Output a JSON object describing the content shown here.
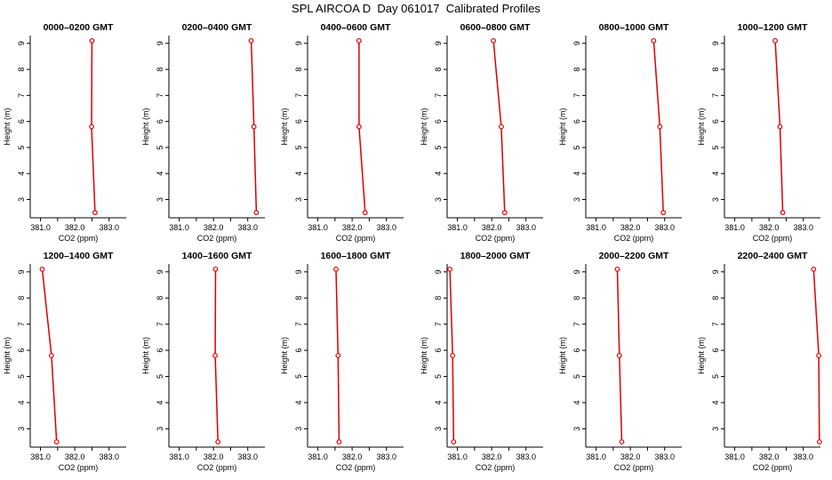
{
  "title": "SPL AIRCOA D  Day 061017  Calibrated Profiles",
  "chart_data": {
    "type": "line",
    "title": "SPL AIRCOA D  Day 061017  Calibrated Profiles",
    "xlabel": "CO2 (ppm)",
    "ylabel": "Height (m)",
    "xlim": [
      380.7,
      383.5
    ],
    "ylim": [
      2.3,
      9.3
    ],
    "xticks": [
      381.0,
      381.5,
      382.0,
      382.5,
      383.0
    ],
    "xtick_labels": [
      "381.0",
      "",
      "382.0",
      "",
      "383.0"
    ],
    "yticks": [
      3,
      4,
      5,
      6,
      7,
      8,
      9
    ],
    "heights": [
      2.5,
      5.8,
      9.1
    ],
    "line_color": "#dd0000",
    "grid": false,
    "legend": "none",
    "panels": [
      {
        "title": "0000–0200 GMT",
        "x": [
          382.59,
          382.49,
          382.5
        ]
      },
      {
        "title": "0200–0400 GMT",
        "x": [
          383.25,
          383.18,
          383.1
        ]
      },
      {
        "title": "0400–0600 GMT",
        "x": [
          382.38,
          382.2,
          382.2
        ]
      },
      {
        "title": "0600–0800 GMT",
        "x": [
          382.38,
          382.28,
          382.05
        ]
      },
      {
        "title": "0800–1000 GMT",
        "x": [
          382.96,
          382.86,
          382.68
        ]
      },
      {
        "title": "1000–1200 GMT",
        "x": [
          382.4,
          382.32,
          382.18
        ]
      },
      {
        "title": "1200–1400 GMT",
        "x": [
          381.47,
          381.32,
          381.05
        ]
      },
      {
        "title": "1400–1600 GMT",
        "x": [
          382.13,
          382.05,
          382.06
        ]
      },
      {
        "title": "1600–1800 GMT",
        "x": [
          381.62,
          381.59,
          381.53
        ]
      },
      {
        "title": "1800–2000 GMT",
        "x": [
          380.89,
          380.86,
          380.78
        ]
      },
      {
        "title": "2000–2200 GMT",
        "x": [
          381.75,
          381.68,
          381.62
        ]
      },
      {
        "title": "2200–2400 GMT",
        "x": [
          383.47,
          383.45,
          383.3
        ]
      }
    ]
  }
}
